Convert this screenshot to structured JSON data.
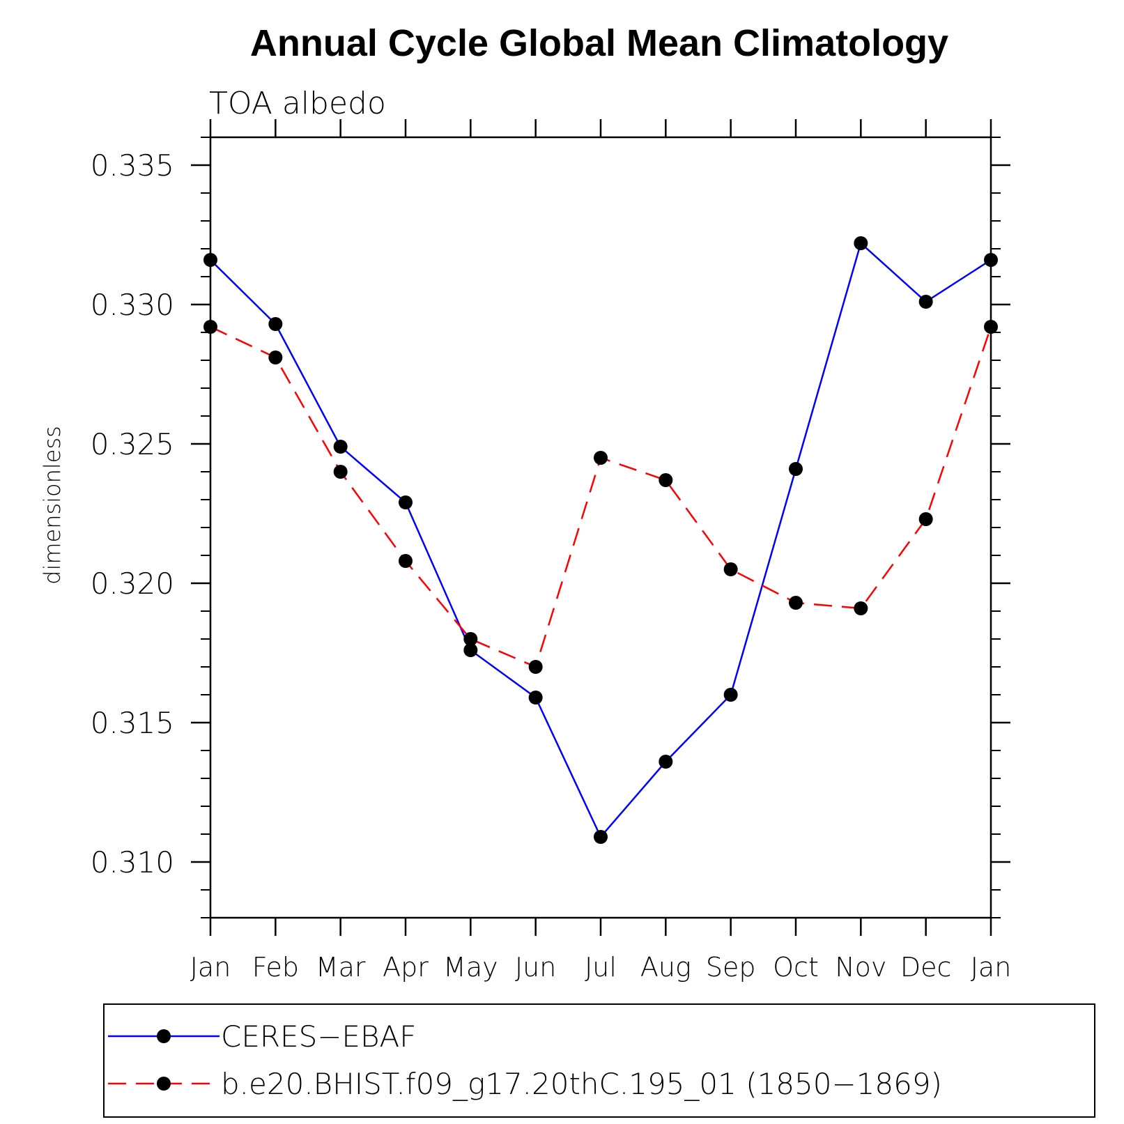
{
  "chart_data": {
    "type": "line",
    "title": "Annual Cycle Global Mean Climatology",
    "subtitle": "TOA albedo",
    "ylabel": "dimensionless",
    "xlabel": "",
    "categories": [
      "Jan",
      "Feb",
      "Mar",
      "Apr",
      "May",
      "Jun",
      "Jul",
      "Aug",
      "Sep",
      "Oct",
      "Nov",
      "Dec",
      "Jan"
    ],
    "ylim": [
      0.308,
      0.336
    ],
    "yticks": [
      "0.310",
      "0.315",
      "0.320",
      "0.325",
      "0.330",
      "0.335"
    ],
    "grid": false,
    "legend_position": "bottom",
    "series": [
      {
        "name": "CERES−EBAF",
        "color": "#0000ff",
        "dash": "solid",
        "marker": "circle",
        "values": [
          0.3316,
          0.3293,
          0.3249,
          0.3229,
          0.3176,
          0.3159,
          0.3109,
          0.3136,
          0.316,
          0.3241,
          0.3322,
          0.3301,
          0.3316
        ]
      },
      {
        "name": "b.e20.BHIST.f09_g17.20thC.195_01 (1850−1869)",
        "color": "#ff0000",
        "dash": "dashed",
        "marker": "circle",
        "values": [
          0.3292,
          0.3281,
          0.324,
          0.3208,
          0.318,
          0.317,
          0.3245,
          0.3237,
          0.3205,
          0.3193,
          0.3191,
          0.3223,
          0.3292
        ]
      }
    ]
  }
}
